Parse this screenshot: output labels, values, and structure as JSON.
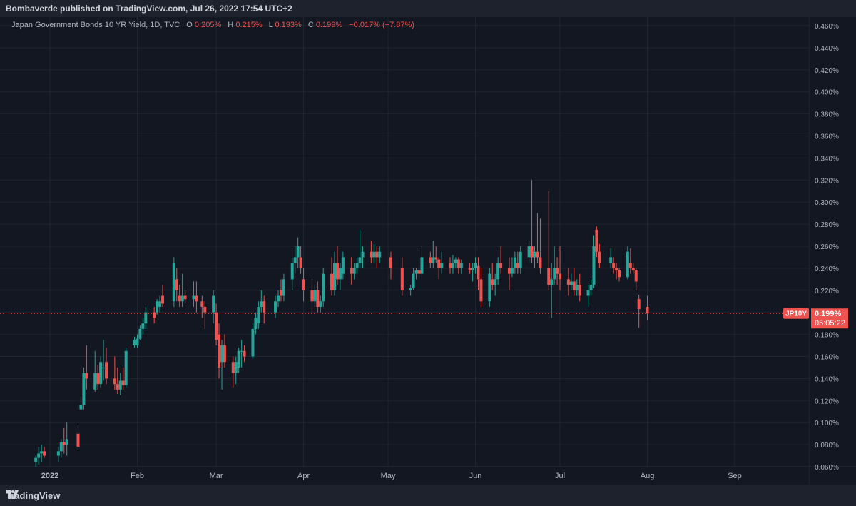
{
  "header": {
    "published": "Bombaverde published on TradingView.com, Jul 26, 2022 17:54 UTC+2"
  },
  "legend": {
    "title": "Japan Government Bonds 10 YR Yield, 1D, TVC",
    "o_label": "O",
    "o_value": "0.205%",
    "h_label": "H",
    "h_value": "0.215%",
    "l_label": "L",
    "l_value": "0.193%",
    "c_label": "C",
    "c_value": "0.199%",
    "change": "−0.017% (−7.87%)"
  },
  "price_tag": {
    "symbol": "JP10Y",
    "price": "0.199%",
    "countdown": "05:05:22"
  },
  "footer": {
    "brand": "TradingView"
  },
  "colors": {
    "up": "#26a69a",
    "down": "#ef5350",
    "background": "#131722",
    "grid": "#2a2e39",
    "text": "#b2b5be"
  },
  "chart_data": {
    "type": "candlestick",
    "y_axis": {
      "min": 0.06,
      "max": 0.47,
      "unit": "%",
      "ticks": [
        "0.460%",
        "0.440%",
        "0.420%",
        "0.400%",
        "0.380%",
        "0.360%",
        "0.340%",
        "0.320%",
        "0.300%",
        "0.280%",
        "0.260%",
        "0.240%",
        "0.220%",
        "0.200%",
        "0.180%",
        "0.160%",
        "0.140%",
        "0.120%",
        "0.100%",
        "0.080%",
        "0.060%"
      ]
    },
    "x_axis": {
      "labels": [
        "2022",
        "Feb",
        "Mar",
        "Apr",
        "May",
        "Jun",
        "Jul",
        "Aug",
        "Sep"
      ]
    },
    "last_price": 0.199,
    "candles": [
      {
        "date": "2021-12-27",
        "o": 0.064,
        "h": 0.07,
        "l": 0.06,
        "c": 0.068
      },
      {
        "date": "2021-12-28",
        "o": 0.068,
        "h": 0.078,
        "l": 0.062,
        "c": 0.072
      },
      {
        "date": "2021-12-29",
        "o": 0.072,
        "h": 0.08,
        "l": 0.064,
        "c": 0.074
      },
      {
        "date": "2021-12-30",
        "o": 0.074,
        "h": 0.078,
        "l": 0.068,
        "c": 0.07
      },
      {
        "date": "2022-01-04",
        "o": 0.07,
        "h": 0.078,
        "l": 0.064,
        "c": 0.074
      },
      {
        "date": "2022-01-05",
        "o": 0.074,
        "h": 0.085,
        "l": 0.068,
        "c": 0.082
      },
      {
        "date": "2022-01-06",
        "o": 0.082,
        "h": 0.095,
        "l": 0.072,
        "c": 0.08
      },
      {
        "date": "2022-01-07",
        "o": 0.08,
        "h": 0.1,
        "l": 0.07,
        "c": 0.085
      },
      {
        "date": "2022-01-11",
        "o": 0.09,
        "h": 0.098,
        "l": 0.075,
        "c": 0.078
      },
      {
        "date": "2022-01-12",
        "o": 0.112,
        "h": 0.124,
        "l": 0.112,
        "c": 0.116
      },
      {
        "date": "2022-01-13",
        "o": 0.116,
        "h": 0.15,
        "l": 0.112,
        "c": 0.145
      },
      {
        "date": "2022-01-14",
        "o": 0.145,
        "h": 0.17,
        "l": 0.13,
        "c": 0.14
      },
      {
        "date": "2022-01-17",
        "o": 0.13,
        "h": 0.165,
        "l": 0.128,
        "c": 0.145
      },
      {
        "date": "2022-01-18",
        "o": 0.145,
        "h": 0.152,
        "l": 0.13,
        "c": 0.135
      },
      {
        "date": "2022-01-19",
        "o": 0.135,
        "h": 0.16,
        "l": 0.132,
        "c": 0.155
      },
      {
        "date": "2022-01-20",
        "o": 0.15,
        "h": 0.175,
        "l": 0.138,
        "c": 0.15
      },
      {
        "date": "2022-01-21",
        "o": 0.155,
        "h": 0.168,
        "l": 0.135,
        "c": 0.14
      },
      {
        "date": "2022-01-24",
        "o": 0.14,
        "h": 0.16,
        "l": 0.13,
        "c": 0.135
      },
      {
        "date": "2022-01-25",
        "o": 0.135,
        "h": 0.15,
        "l": 0.126,
        "c": 0.13
      },
      {
        "date": "2022-01-26",
        "o": 0.13,
        "h": 0.145,
        "l": 0.125,
        "c": 0.138
      },
      {
        "date": "2022-01-27",
        "o": 0.138,
        "h": 0.15,
        "l": 0.13,
        "c": 0.134
      },
      {
        "date": "2022-01-28",
        "o": 0.134,
        "h": 0.168,
        "l": 0.132,
        "c": 0.165
      },
      {
        "date": "2022-01-31",
        "o": 0.17,
        "h": 0.178,
        "l": 0.168,
        "c": 0.175
      },
      {
        "date": "2022-02-01",
        "o": 0.17,
        "h": 0.18,
        "l": 0.168,
        "c": 0.176
      },
      {
        "date": "2022-02-02",
        "o": 0.176,
        "h": 0.188,
        "l": 0.175,
        "c": 0.185
      },
      {
        "date": "2022-02-03",
        "o": 0.185,
        "h": 0.195,
        "l": 0.18,
        "c": 0.19
      },
      {
        "date": "2022-02-04",
        "o": 0.19,
        "h": 0.205,
        "l": 0.185,
        "c": 0.2
      },
      {
        "date": "2022-02-07",
        "o": 0.2,
        "h": 0.205,
        "l": 0.19,
        "c": 0.195
      },
      {
        "date": "2022-02-08",
        "o": 0.2,
        "h": 0.212,
        "l": 0.198,
        "c": 0.21
      },
      {
        "date": "2022-02-09",
        "o": 0.205,
        "h": 0.215,
        "l": 0.2,
        "c": 0.21
      },
      {
        "date": "2022-02-10",
        "o": 0.215,
        "h": 0.225,
        "l": 0.205,
        "c": 0.208
      },
      {
        "date": "2022-02-14",
        "o": 0.21,
        "h": 0.25,
        "l": 0.205,
        "c": 0.245
      },
      {
        "date": "2022-02-15",
        "o": 0.23,
        "h": 0.24,
        "l": 0.21,
        "c": 0.22
      },
      {
        "date": "2022-02-16",
        "o": 0.215,
        "h": 0.225,
        "l": 0.205,
        "c": 0.21
      },
      {
        "date": "2022-02-17",
        "o": 0.21,
        "h": 0.235,
        "l": 0.205,
        "c": 0.215
      },
      {
        "date": "2022-02-18",
        "o": 0.215,
        "h": 0.22,
        "l": 0.208,
        "c": 0.212
      },
      {
        "date": "2022-02-21",
        "o": 0.212,
        "h": 0.228,
        "l": 0.205,
        "c": 0.215
      },
      {
        "date": "2022-02-22",
        "o": 0.215,
        "h": 0.228,
        "l": 0.2,
        "c": 0.21
      },
      {
        "date": "2022-02-24",
        "o": 0.21,
        "h": 0.215,
        "l": 0.195,
        "c": 0.205
      },
      {
        "date": "2022-02-25",
        "o": 0.205,
        "h": 0.21,
        "l": 0.185,
        "c": 0.2
      },
      {
        "date": "2022-02-28",
        "o": 0.2,
        "h": 0.22,
        "l": 0.19,
        "c": 0.215
      },
      {
        "date": "2022-03-01",
        "o": 0.2,
        "h": 0.208,
        "l": 0.17,
        "c": 0.175
      },
      {
        "date": "2022-03-02",
        "o": 0.18,
        "h": 0.19,
        "l": 0.14,
        "c": 0.15
      },
      {
        "date": "2022-03-03",
        "o": 0.155,
        "h": 0.175,
        "l": 0.13,
        "c": 0.17
      },
      {
        "date": "2022-03-04",
        "o": 0.17,
        "h": 0.18,
        "l": 0.15,
        "c": 0.155
      },
      {
        "date": "2022-03-07",
        "o": 0.155,
        "h": 0.16,
        "l": 0.132,
        "c": 0.145
      },
      {
        "date": "2022-03-08",
        "o": 0.145,
        "h": 0.16,
        "l": 0.135,
        "c": 0.155
      },
      {
        "date": "2022-03-09",
        "o": 0.15,
        "h": 0.168,
        "l": 0.145,
        "c": 0.165
      },
      {
        "date": "2022-03-10",
        "o": 0.165,
        "h": 0.175,
        "l": 0.15,
        "c": 0.165
      },
      {
        "date": "2022-03-11",
        "o": 0.165,
        "h": 0.17,
        "l": 0.155,
        "c": 0.16
      },
      {
        "date": "2022-03-14",
        "o": 0.16,
        "h": 0.19,
        "l": 0.158,
        "c": 0.185
      },
      {
        "date": "2022-03-15",
        "o": 0.185,
        "h": 0.2,
        "l": 0.18,
        "c": 0.195
      },
      {
        "date": "2022-03-16",
        "o": 0.19,
        "h": 0.21,
        "l": 0.185,
        "c": 0.205
      },
      {
        "date": "2022-03-17",
        "o": 0.205,
        "h": 0.22,
        "l": 0.2,
        "c": 0.21
      },
      {
        "date": "2022-03-18",
        "o": 0.21,
        "h": 0.215,
        "l": 0.19,
        "c": 0.2
      },
      {
        "date": "2022-03-22",
        "o": 0.2,
        "h": 0.215,
        "l": 0.195,
        "c": 0.21
      },
      {
        "date": "2022-03-23",
        "o": 0.21,
        "h": 0.22,
        "l": 0.205,
        "c": 0.215
      },
      {
        "date": "2022-03-24",
        "o": 0.22,
        "h": 0.23,
        "l": 0.21,
        "c": 0.215
      },
      {
        "date": "2022-03-25",
        "o": 0.215,
        "h": 0.235,
        "l": 0.21,
        "c": 0.23
      },
      {
        "date": "2022-03-28",
        "o": 0.23,
        "h": 0.25,
        "l": 0.22,
        "c": 0.245
      },
      {
        "date": "2022-03-29",
        "o": 0.245,
        "h": 0.26,
        "l": 0.235,
        "c": 0.25
      },
      {
        "date": "2022-03-30",
        "o": 0.25,
        "h": 0.268,
        "l": 0.24,
        "c": 0.26
      },
      {
        "date": "2022-03-31",
        "o": 0.25,
        "h": 0.26,
        "l": 0.235,
        "c": 0.24
      },
      {
        "date": "2022-04-01",
        "o": 0.23,
        "h": 0.24,
        "l": 0.21,
        "c": 0.22
      },
      {
        "date": "2022-04-04",
        "o": 0.22,
        "h": 0.23,
        "l": 0.2,
        "c": 0.21
      },
      {
        "date": "2022-04-05",
        "o": 0.21,
        "h": 0.225,
        "l": 0.205,
        "c": 0.22
      },
      {
        "date": "2022-04-06",
        "o": 0.22,
        "h": 0.228,
        "l": 0.2,
        "c": 0.205
      },
      {
        "date": "2022-04-07",
        "o": 0.205,
        "h": 0.215,
        "l": 0.2,
        "c": 0.21
      },
      {
        "date": "2022-04-08",
        "o": 0.21,
        "h": 0.24,
        "l": 0.205,
        "c": 0.235
      },
      {
        "date": "2022-04-11",
        "o": 0.235,
        "h": 0.25,
        "l": 0.215,
        "c": 0.22
      },
      {
        "date": "2022-04-12",
        "o": 0.22,
        "h": 0.255,
        "l": 0.215,
        "c": 0.245
      },
      {
        "date": "2022-04-13",
        "o": 0.245,
        "h": 0.26,
        "l": 0.225,
        "c": 0.23
      },
      {
        "date": "2022-04-14",
        "o": 0.23,
        "h": 0.245,
        "l": 0.22,
        "c": 0.24
      },
      {
        "date": "2022-04-15",
        "o": 0.235,
        "h": 0.255,
        "l": 0.23,
        "c": 0.25
      },
      {
        "date": "2022-04-18",
        "o": 0.24,
        "h": 0.25,
        "l": 0.225,
        "c": 0.235
      },
      {
        "date": "2022-04-19",
        "o": 0.235,
        "h": 0.245,
        "l": 0.23,
        "c": 0.24
      },
      {
        "date": "2022-04-20",
        "o": 0.24,
        "h": 0.25,
        "l": 0.235,
        "c": 0.245
      },
      {
        "date": "2022-04-21",
        "o": 0.245,
        "h": 0.275,
        "l": 0.24,
        "c": 0.25
      },
      {
        "date": "2022-04-22",
        "o": 0.25,
        "h": 0.26,
        "l": 0.24,
        "c": 0.255
      },
      {
        "date": "2022-04-25",
        "o": 0.255,
        "h": 0.265,
        "l": 0.245,
        "c": 0.25
      },
      {
        "date": "2022-04-26",
        "o": 0.25,
        "h": 0.262,
        "l": 0.245,
        "c": 0.255
      },
      {
        "date": "2022-04-27",
        "o": 0.255,
        "h": 0.26,
        "l": 0.24,
        "c": 0.25
      },
      {
        "date": "2022-04-28",
        "o": 0.25,
        "h": 0.26,
        "l": 0.245,
        "c": 0.255
      },
      {
        "date": "2022-05-02",
        "o": 0.25,
        "h": 0.255,
        "l": 0.23,
        "c": 0.24
      },
      {
        "date": "2022-05-06",
        "o": 0.24,
        "h": 0.25,
        "l": 0.215,
        "c": 0.22
      },
      {
        "date": "2022-05-09",
        "o": 0.22,
        "h": 0.225,
        "l": 0.215,
        "c": 0.222
      },
      {
        "date": "2022-05-10",
        "o": 0.222,
        "h": 0.24,
        "l": 0.22,
        "c": 0.235
      },
      {
        "date": "2022-05-11",
        "o": 0.235,
        "h": 0.24,
        "l": 0.23,
        "c": 0.238
      },
      {
        "date": "2022-05-12",
        "o": 0.238,
        "h": 0.24,
        "l": 0.232,
        "c": 0.235
      },
      {
        "date": "2022-05-13",
        "o": 0.235,
        "h": 0.26,
        "l": 0.232,
        "c": 0.25
      },
      {
        "date": "2022-05-16",
        "o": 0.25,
        "h": 0.255,
        "l": 0.24,
        "c": 0.245
      },
      {
        "date": "2022-05-17",
        "o": 0.245,
        "h": 0.265,
        "l": 0.24,
        "c": 0.25
      },
      {
        "date": "2022-05-18",
        "o": 0.25,
        "h": 0.26,
        "l": 0.245,
        "c": 0.248
      },
      {
        "date": "2022-05-19",
        "o": 0.248,
        "h": 0.25,
        "l": 0.23,
        "c": 0.24
      },
      {
        "date": "2022-05-20",
        "o": 0.24,
        "h": 0.255,
        "l": 0.235,
        "c": 0.245
      },
      {
        "date": "2022-05-23",
        "o": 0.245,
        "h": 0.25,
        "l": 0.235,
        "c": 0.24
      },
      {
        "date": "2022-05-24",
        "o": 0.24,
        "h": 0.252,
        "l": 0.235,
        "c": 0.245
      },
      {
        "date": "2022-05-25",
        "o": 0.245,
        "h": 0.25,
        "l": 0.24,
        "c": 0.248
      },
      {
        "date": "2022-05-26",
        "o": 0.248,
        "h": 0.25,
        "l": 0.235,
        "c": 0.24
      },
      {
        "date": "2022-05-27",
        "o": 0.24,
        "h": 0.248,
        "l": 0.235,
        "c": 0.245
      },
      {
        "date": "2022-05-30",
        "o": 0.24,
        "h": 0.245,
        "l": 0.235,
        "c": 0.238
      },
      {
        "date": "2022-05-31",
        "o": 0.238,
        "h": 0.245,
        "l": 0.228,
        "c": 0.24
      },
      {
        "date": "2022-06-01",
        "o": 0.24,
        "h": 0.25,
        "l": 0.235,
        "c": 0.245
      },
      {
        "date": "2022-06-02",
        "o": 0.242,
        "h": 0.25,
        "l": 0.22,
        "c": 0.23
      },
      {
        "date": "2022-06-03",
        "o": 0.23,
        "h": 0.24,
        "l": 0.205,
        "c": 0.21
      },
      {
        "date": "2022-06-06",
        "o": 0.21,
        "h": 0.24,
        "l": 0.205,
        "c": 0.235
      },
      {
        "date": "2022-06-07",
        "o": 0.23,
        "h": 0.245,
        "l": 0.22,
        "c": 0.225
      },
      {
        "date": "2022-06-08",
        "o": 0.225,
        "h": 0.235,
        "l": 0.215,
        "c": 0.23
      },
      {
        "date": "2022-06-09",
        "o": 0.23,
        "h": 0.25,
        "l": 0.225,
        "c": 0.245
      },
      {
        "date": "2022-06-10",
        "o": 0.245,
        "h": 0.26,
        "l": 0.235,
        "c": 0.24
      },
      {
        "date": "2022-06-13",
        "o": 0.24,
        "h": 0.25,
        "l": 0.22,
        "c": 0.235
      },
      {
        "date": "2022-06-14",
        "o": 0.235,
        "h": 0.25,
        "l": 0.232,
        "c": 0.24
      },
      {
        "date": "2022-06-15",
        "o": 0.24,
        "h": 0.255,
        "l": 0.235,
        "c": 0.25
      },
      {
        "date": "2022-06-16",
        "o": 0.245,
        "h": 0.255,
        "l": 0.235,
        "c": 0.24
      },
      {
        "date": "2022-06-17",
        "o": 0.24,
        "h": 0.26,
        "l": 0.235,
        "c": 0.255
      },
      {
        "date": "2022-06-20",
        "o": 0.25,
        "h": 0.265,
        "l": 0.245,
        "c": 0.26
      },
      {
        "date": "2022-06-21",
        "o": 0.26,
        "h": 0.32,
        "l": 0.245,
        "c": 0.25
      },
      {
        "date": "2022-06-22",
        "o": 0.25,
        "h": 0.26,
        "l": 0.24,
        "c": 0.255
      },
      {
        "date": "2022-06-23",
        "o": 0.255,
        "h": 0.29,
        "l": 0.245,
        "c": 0.25
      },
      {
        "date": "2022-06-24",
        "o": 0.25,
        "h": 0.285,
        "l": 0.235,
        "c": 0.24
      },
      {
        "date": "2022-06-27",
        "o": 0.24,
        "h": 0.31,
        "l": 0.22,
        "c": 0.225
      },
      {
        "date": "2022-06-28",
        "o": 0.225,
        "h": 0.245,
        "l": 0.195,
        "c": 0.23
      },
      {
        "date": "2022-06-29",
        "o": 0.23,
        "h": 0.26,
        "l": 0.225,
        "c": 0.24
      },
      {
        "date": "2022-06-30",
        "o": 0.24,
        "h": 0.25,
        "l": 0.225,
        "c": 0.235
      },
      {
        "date": "2022-07-01",
        "o": 0.235,
        "h": 0.26,
        "l": 0.22,
        "c": 0.23
      },
      {
        "date": "2022-07-04",
        "o": 0.23,
        "h": 0.24,
        "l": 0.215,
        "c": 0.225
      },
      {
        "date": "2022-07-05",
        "o": 0.225,
        "h": 0.235,
        "l": 0.22,
        "c": 0.228
      },
      {
        "date": "2022-07-06",
        "o": 0.228,
        "h": 0.24,
        "l": 0.215,
        "c": 0.22
      },
      {
        "date": "2022-07-07",
        "o": 0.22,
        "h": 0.23,
        "l": 0.215,
        "c": 0.225
      },
      {
        "date": "2022-07-08",
        "o": 0.225,
        "h": 0.235,
        "l": 0.21,
        "c": 0.215
      },
      {
        "date": "2022-07-11",
        "o": 0.215,
        "h": 0.225,
        "l": 0.205,
        "c": 0.22
      },
      {
        "date": "2022-07-12",
        "o": 0.22,
        "h": 0.23,
        "l": 0.215,
        "c": 0.225
      },
      {
        "date": "2022-07-13",
        "o": 0.225,
        "h": 0.27,
        "l": 0.222,
        "c": 0.26
      },
      {
        "date": "2022-07-14",
        "o": 0.275,
        "h": 0.278,
        "l": 0.25,
        "c": 0.255
      },
      {
        "date": "2022-07-15",
        "o": 0.255,
        "h": 0.262,
        "l": 0.24,
        "c": 0.245
      },
      {
        "date": "2022-07-19",
        "o": 0.245,
        "h": 0.258,
        "l": 0.24,
        "c": 0.25
      },
      {
        "date": "2022-07-20",
        "o": 0.245,
        "h": 0.25,
        "l": 0.235,
        "c": 0.24
      },
      {
        "date": "2022-07-21",
        "o": 0.24,
        "h": 0.245,
        "l": 0.23,
        "c": 0.238
      },
      {
        "date": "2022-07-22",
        "o": 0.238,
        "h": 0.24,
        "l": 0.228,
        "c": 0.232
      },
      {
        "date": "2022-07-25",
        "o": 0.232,
        "h": 0.26,
        "l": 0.23,
        "c": 0.255
      },
      {
        "date": "2022-07-26",
        "o": 0.245,
        "h": 0.258,
        "l": 0.235,
        "c": 0.24
      },
      {
        "date": "2022-07-27",
        "o": 0.24,
        "h": 0.245,
        "l": 0.235,
        "c": 0.238
      },
      {
        "date": "2022-07-28",
        "o": 0.238,
        "h": 0.24,
        "l": 0.22,
        "c": 0.228
      },
      {
        "date": "2022-07-29",
        "o": 0.212,
        "h": 0.216,
        "l": 0.186,
        "c": 0.203
      },
      {
        "date": "2022-08-01",
        "o": 0.205,
        "h": 0.215,
        "l": 0.193,
        "c": 0.199
      }
    ]
  }
}
